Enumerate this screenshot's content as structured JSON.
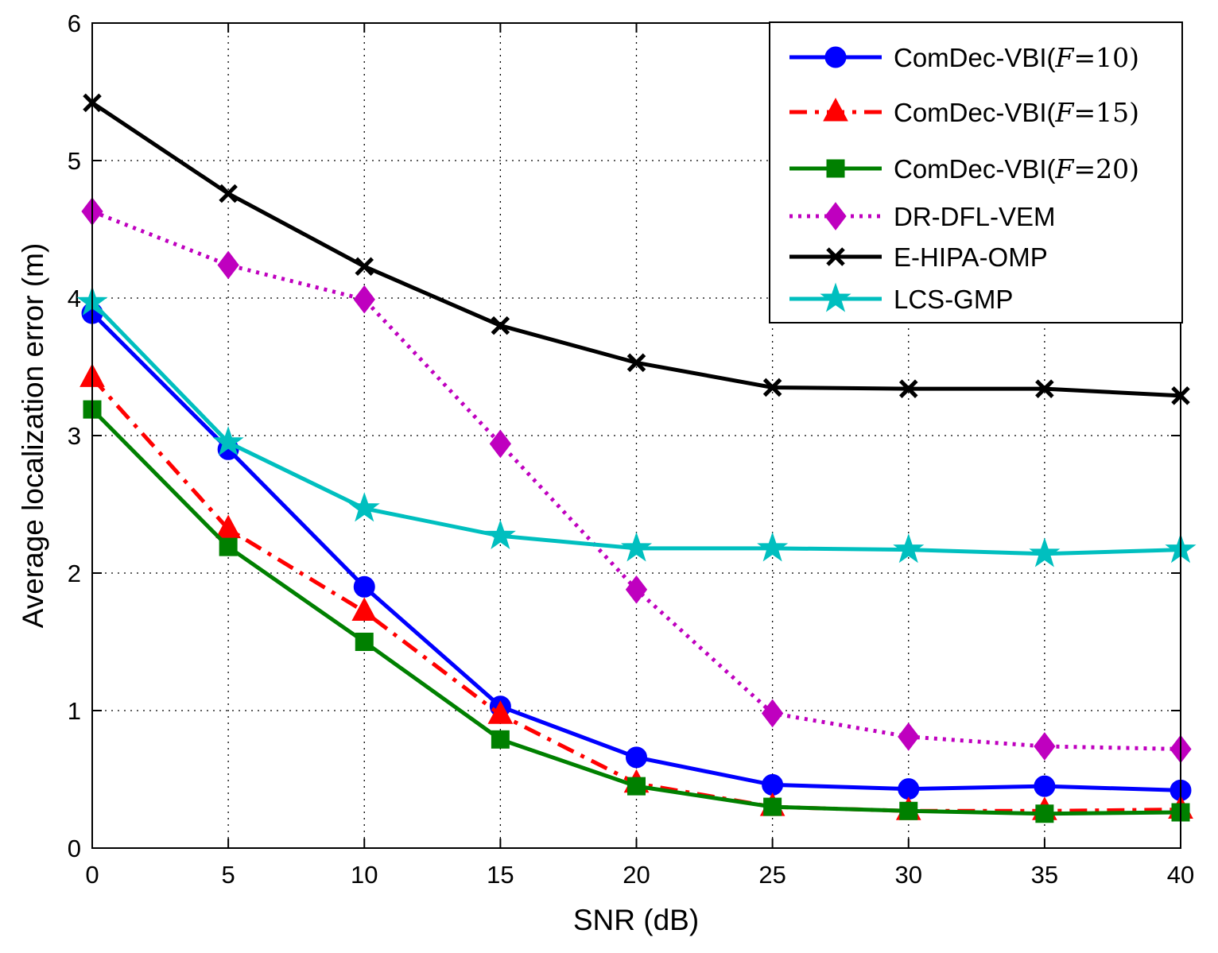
{
  "chart_data": {
    "type": "line",
    "title": "",
    "xlabel": "SNR (dB)",
    "ylabel": "Average localization error (m)",
    "xlim": [
      0,
      40
    ],
    "ylim": [
      0,
      6
    ],
    "xticks": [
      0,
      5,
      10,
      15,
      20,
      25,
      30,
      35,
      40
    ],
    "yticks": [
      0,
      1,
      2,
      3,
      4,
      5,
      6
    ],
    "grid": true,
    "legend_position": "top-right",
    "x": [
      0,
      5,
      10,
      15,
      20,
      25,
      30,
      35,
      40
    ],
    "series": [
      {
        "name": "ComDec-VBI(F=10)",
        "color": "#0000ff",
        "marker": "circle",
        "linestyle": "solid",
        "values": [
          3.89,
          2.9,
          1.9,
          1.03,
          0.66,
          0.46,
          0.43,
          0.45,
          0.42
        ]
      },
      {
        "name": "ComDec-VBI(F=15)",
        "color": "#ff0000",
        "marker": "triangle",
        "linestyle": "dashdot",
        "values": [
          3.42,
          2.32,
          1.72,
          0.97,
          0.47,
          0.3,
          0.27,
          0.27,
          0.28
        ]
      },
      {
        "name": "ComDec-VBI(F=20)",
        "color": "#008000",
        "marker": "square",
        "linestyle": "solid",
        "values": [
          3.19,
          2.19,
          1.5,
          0.79,
          0.45,
          0.3,
          0.27,
          0.25,
          0.26
        ]
      },
      {
        "name": "DR-DFL-VEM",
        "color": "#bf00bf",
        "marker": "diamond",
        "linestyle": "dotted",
        "values": [
          4.63,
          4.24,
          3.99,
          2.94,
          1.88,
          0.98,
          0.81,
          0.74,
          0.72
        ]
      },
      {
        "name": "E-HIPA-OMP",
        "color": "#000000",
        "marker": "x",
        "linestyle": "solid",
        "values": [
          5.42,
          4.76,
          4.23,
          3.8,
          3.53,
          3.35,
          3.34,
          3.34,
          3.29
        ]
      },
      {
        "name": "LCS-GMP",
        "color": "#00bfbf",
        "marker": "star",
        "linestyle": "solid",
        "values": [
          3.97,
          2.95,
          2.47,
          2.27,
          2.18,
          2.18,
          2.17,
          2.14,
          2.17
        ]
      }
    ]
  }
}
